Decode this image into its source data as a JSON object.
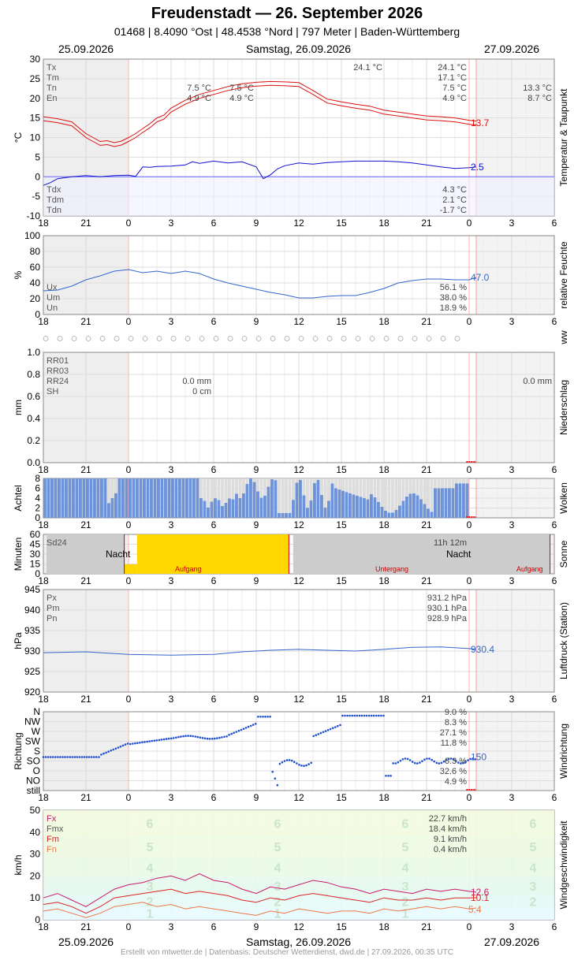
{
  "title": "Freudenstadt  —  26. September 2026",
  "subtitle": "01468  |  8.4090 °Ost  |  48.4538 °Nord  |  797 Meter  |  Baden-Württemberg",
  "dates": {
    "left": "25.09.2026",
    "center": "Samstag, 26.09.2026",
    "right": "27.09.2026"
  },
  "footer": "Erstellt von mtwetter.de | Datenbasis: Deutscher Wetterdienst, dwd.de | 27.09.2026, 00:35 UTC",
  "x_ticks": [
    "18",
    "21",
    "0",
    "3",
    "6",
    "9",
    "12",
    "15",
    "18",
    "21",
    "0",
    "3",
    "6"
  ],
  "colors": {
    "temp": "#dd1111",
    "dew": "#1111cc",
    "humidity": "#3366cc",
    "cloud": "#6f93d8",
    "sun": "#ffd700",
    "pressure": "#3366cc",
    "wind_dir": "#1f4fcc",
    "fx": "#c8176b",
    "fm": "#dd2222",
    "fn": "#ee7744"
  },
  "chart_data": [
    {
      "id": "temperature",
      "type": "line",
      "ylabel": "°C",
      "side_label": "Temperatur & Taupunkt",
      "ylim": [
        -10,
        30
      ],
      "yticks": [
        -10,
        -5,
        0,
        5,
        10,
        15,
        20,
        25,
        30
      ],
      "legend_top": [
        "Tx",
        "Tm",
        "Tn",
        "En"
      ],
      "legend_bottom": [
        "Tdx",
        "Tdm",
        "Tdn"
      ],
      "annotations": {
        "prev_day": [
          "7.5 °C",
          "4.9 °C"
        ],
        "prev_day2": [
          "7.5 °C",
          "4.9 °C"
        ],
        "max_label": "24.1 °C",
        "day_stats": [
          "24.1 °C",
          "17.1 °C",
          "7.5 °C",
          "4.9 °C"
        ],
        "next_day": [
          "13.3 °C",
          "8.7 °C"
        ],
        "dew_stats": [
          "4.3 °C",
          "2.1 °C",
          "-1.7 °C"
        ]
      },
      "current": [
        "13.7",
        "2.5"
      ],
      "series": [
        {
          "name": "Temperatur",
          "x": [
            0,
            1,
            2,
            2.5,
            3,
            3.5,
            4,
            4.5,
            5,
            5.5,
            6,
            6.5,
            7,
            7.5,
            8,
            8.5,
            9,
            10,
            11,
            12,
            13,
            14,
            15,
            16,
            17,
            18,
            19,
            20,
            21,
            22,
            23,
            24,
            25,
            26,
            27,
            28,
            29,
            30,
            30.5
          ],
          "y": [
            14.8,
            14.3,
            13.5,
            12,
            10.5,
            9.5,
            8.5,
            8.7,
            8.2,
            8.6,
            9.5,
            10.5,
            11.8,
            13,
            14.5,
            15.2,
            17,
            19,
            20.5,
            21.5,
            22.5,
            23.2,
            23.6,
            23.8,
            23.7,
            23.5,
            21.5,
            19.3,
            18.6,
            18,
            17.5,
            16.5,
            16,
            15.5,
            15,
            14.8,
            14.5,
            13.9,
            13.7
          ]
        },
        {
          "name": "Taupunkt",
          "x": [
            0,
            0.5,
            1,
            2,
            3,
            4,
            5,
            6,
            6.5,
            7,
            7.5,
            8,
            9,
            10,
            10.5,
            11,
            12,
            13,
            14,
            15,
            15.5,
            16,
            16.5,
            17,
            18,
            19,
            20,
            21,
            22,
            23,
            24,
            25,
            26,
            27,
            28,
            29,
            30,
            30.5
          ],
          "y": [
            -2.2,
            -1.5,
            -0.5,
            0,
            0.3,
            0,
            0.3,
            0.4,
            0.1,
            2.5,
            2.4,
            2.6,
            2.7,
            3,
            3.8,
            3.4,
            4,
            3.5,
            3.8,
            2.5,
            -0.5,
            0.5,
            2,
            2.8,
            3.5,
            3.2,
            3.6,
            3.8,
            4,
            4,
            4,
            3.8,
            3.5,
            3,
            2.5,
            2.1,
            2.3,
            2.5
          ]
        }
      ]
    },
    {
      "id": "humidity",
      "type": "line",
      "ylabel": "%",
      "side_label": "relative Feuchte",
      "ylim": [
        0,
        100
      ],
      "yticks": [
        0,
        20,
        40,
        60,
        80,
        100
      ],
      "legend": [
        "Ux",
        "Um",
        "Un"
      ],
      "stats": [
        "56.1 %",
        "38.0 %",
        "18.9 %"
      ],
      "current": "47.0",
      "series": [
        {
          "name": "Feuchte",
          "x": [
            0,
            1,
            2,
            3,
            4,
            5,
            6,
            7,
            8,
            9,
            10,
            11,
            12,
            13,
            14,
            15,
            16,
            17,
            18,
            19,
            20,
            21,
            22,
            23,
            24,
            25,
            26,
            27,
            28,
            29,
            30,
            30.5
          ],
          "y": [
            30,
            31,
            36,
            44,
            49,
            55,
            57,
            53,
            55,
            52,
            55,
            52,
            45,
            40,
            36,
            32,
            28,
            25,
            21,
            21,
            23,
            24,
            24,
            28,
            33,
            40,
            43,
            45,
            45,
            44,
            44,
            47
          ]
        }
      ]
    },
    {
      "id": "ww",
      "type": "table",
      "side_label": "ww",
      "symbol": "○"
    },
    {
      "id": "precipitation",
      "type": "bar",
      "ylabel": "mm",
      "side_label": "Niederschlag",
      "ylim": [
        0,
        1
      ],
      "yticks": [
        "0.0",
        "0.2",
        "0.4",
        "0.6",
        "0.8",
        "1.0"
      ],
      "legend": [
        "RR01",
        "RR03",
        "RR24",
        "SH"
      ],
      "values_prev": [
        "0.0 mm",
        "0 cm"
      ],
      "values_next": "0.0 mm"
    },
    {
      "id": "clouds",
      "type": "bar",
      "ylabel": "Achtel",
      "side_label": "Wolken",
      "ylim": [
        0,
        8
      ],
      "yticks": [
        0,
        2,
        4,
        6,
        8
      ],
      "blocks": [
        [
          0,
          8
        ],
        [
          6,
          8
        ],
        [
          7,
          4
        ],
        [
          8,
          2
        ],
        [
          9,
          8
        ],
        [
          11,
          8
        ],
        [
          20,
          8
        ],
        [
          22,
          8
        ],
        [
          28.8,
          8
        ]
      ],
      "gaps": [
        [
          6.5,
          7.5
        ],
        [
          22.5,
          24.5
        ],
        [
          28,
          29.5
        ],
        [
          30,
          31
        ],
        [
          38,
          39
        ],
        [
          52,
          55
        ]
      ]
    },
    {
      "id": "sunshine",
      "type": "bar",
      "ylabel": "Minuten",
      "side_label": "Sonne",
      "ylim": [
        0,
        60
      ],
      "yticks": [
        0,
        15,
        30,
        45,
        60
      ],
      "label_sd": "Sd24",
      "label_night": "Nacht",
      "label_sunrise": "Aufgang",
      "label_sunset": "Untergang",
      "duration": "11h 12m"
    },
    {
      "id": "pressure",
      "type": "line",
      "ylabel": "hPa",
      "side_label": "Luftdruck (Station)",
      "ylim": [
        920,
        945
      ],
      "yticks": [
        920,
        925,
        930,
        935,
        940,
        945
      ],
      "legend": [
        "Px",
        "Pm",
        "Pn"
      ],
      "stats": [
        "931.2 hPa",
        "930.1 hPa",
        "928.9 hPa"
      ],
      "current": "930.4",
      "series": [
        {
          "name": "Luftdruck",
          "x": [
            0,
            3,
            6,
            9,
            12,
            14,
            16,
            18,
            20,
            22,
            24,
            26,
            28,
            30,
            30.5
          ],
          "y": [
            929.6,
            929.8,
            929.2,
            929,
            929.2,
            929.8,
            930.2,
            930.4,
            930.2,
            930,
            930.4,
            930.9,
            931,
            930.6,
            930.4
          ]
        }
      ]
    },
    {
      "id": "wind_dir",
      "type": "scatter",
      "ylabel": "Richtung",
      "side_label": "Windrichtung",
      "yticks": [
        "still",
        "NO",
        "O",
        "SO",
        "S",
        "SW",
        "W",
        "NW",
        "N"
      ],
      "stats": [
        "9.0 %",
        "8.3 %",
        "27.1 %",
        "11.8 %",
        "6.3 %",
        "32.6 %",
        "4.9 %"
      ],
      "current": "150"
    },
    {
      "id": "wind_speed",
      "type": "line",
      "ylabel": "km/h",
      "side_label": "Windgeschwindigkeit",
      "ylim": [
        0,
        50
      ],
      "yticks": [
        0,
        10,
        20,
        30,
        40,
        50
      ],
      "legend": [
        "Fx",
        "Fmx",
        "Fm",
        "Fn"
      ],
      "stats": [
        "22.7 km/h",
        "18.4 km/h",
        "9.1 km/h",
        "0.4 km/h"
      ],
      "current": [
        "12.6",
        "10.1",
        "5.4"
      ],
      "bft": [
        "1",
        "2",
        "3",
        "4",
        "5",
        "6"
      ],
      "series": [
        {
          "name": "Fx",
          "x": [
            0,
            1,
            2,
            3,
            4,
            5,
            6,
            7,
            8,
            9,
            10,
            11,
            12,
            13,
            14,
            15,
            16,
            17,
            18,
            19,
            20,
            21,
            22,
            23,
            24,
            25,
            26,
            27,
            28,
            29,
            30,
            30.5
          ],
          "y": [
            10,
            12,
            9,
            6,
            10,
            14,
            16,
            17,
            19,
            20,
            18,
            21,
            18,
            17,
            14,
            12,
            15,
            14,
            16,
            18,
            17,
            15,
            14,
            12,
            14,
            13,
            12,
            14,
            13,
            14,
            13,
            12.6
          ]
        },
        {
          "name": "Fm",
          "x": [
            0,
            1,
            2,
            3,
            4,
            5,
            6,
            7,
            8,
            9,
            10,
            11,
            12,
            13,
            14,
            15,
            16,
            17,
            18,
            19,
            20,
            21,
            22,
            23,
            24,
            25,
            26,
            27,
            28,
            29,
            30,
            30.5
          ],
          "y": [
            7,
            8,
            6,
            3,
            6,
            10,
            11,
            12,
            13,
            14,
            12,
            13,
            12,
            11,
            9,
            8,
            10,
            9,
            11,
            12,
            11,
            10,
            9,
            8,
            10,
            9,
            9,
            10,
            9,
            10,
            10,
            10.1
          ]
        },
        {
          "name": "Fn",
          "x": [
            0,
            1,
            2,
            3,
            4,
            5,
            6,
            7,
            8,
            9,
            10,
            11,
            12,
            13,
            14,
            15,
            16,
            17,
            18,
            19,
            20,
            21,
            22,
            23,
            24,
            25,
            26,
            27,
            28,
            29,
            30,
            30.5
          ],
          "y": [
            4,
            5,
            3,
            1,
            3,
            6,
            7,
            8,
            6,
            7,
            5,
            6,
            5,
            4,
            3,
            2,
            4,
            3,
            5,
            4,
            3,
            4,
            4,
            3,
            5,
            4,
            5,
            6,
            5,
            6,
            5,
            5.4
          ]
        }
      ]
    }
  ]
}
